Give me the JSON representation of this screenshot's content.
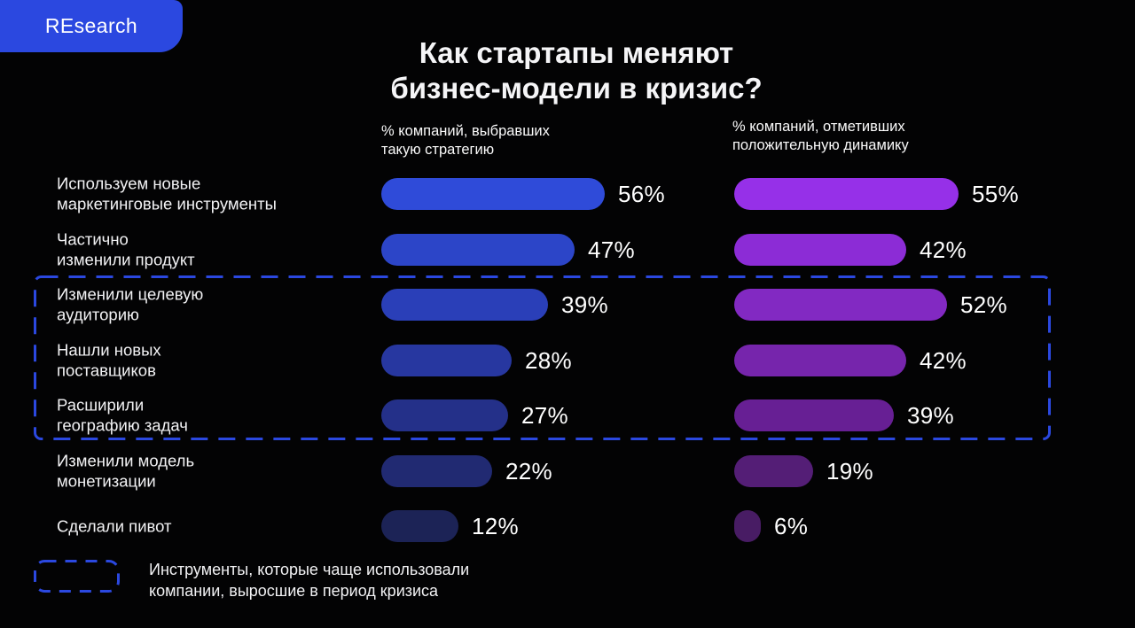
{
  "logo": {
    "text": "REsearch"
  },
  "title": "Как стартапы меняют\nбизнес-модели в кризис?",
  "columns": [
    {
      "header": "% компаний, выбравших\nтакую стратегию"
    },
    {
      "header": "% компаний, отметивших\nположительную динамику"
    }
  ],
  "legend": {
    "text": "Инструменты, которые чаще использовали\nкомпании, выросшие в период кризиса"
  },
  "colors": {
    "background": "#030304",
    "accent_blue": "#2B48E0",
    "logo_background": "#2B48E0",
    "text": "#F5F5F7"
  },
  "chart_data": {
    "type": "bar",
    "orientation": "horizontal",
    "title": "Как стартапы меняют бизнес-модели в кризис?",
    "unit": "%",
    "categories": [
      "Используем новые\nмаркетинговые инструменты",
      "Частично\nизменили продукт",
      "Изменили целевую\nаудиторию",
      "Нашли новых\nпоставщиков",
      "Расширили\nгеографию задач",
      "Изменили модель\nмонетизации",
      "Сделали пивот"
    ],
    "series": [
      {
        "name": "% компаний, выбравших такую стратегию",
        "values": [
          56,
          47,
          39,
          28,
          27,
          22,
          12
        ],
        "colors": [
          "#2F4BD9",
          "#2C45C8",
          "#2A3FB8",
          "#2737A0",
          "#243089",
          "#212A72",
          "#1C2356"
        ]
      },
      {
        "name": "% компаний, отметивших положительную динамику",
        "values": [
          55,
          42,
          52,
          42,
          39,
          19,
          6
        ],
        "colors": [
          "#9630E8",
          "#8C2CD6",
          "#8229C2",
          "#7625AC",
          "#671F94",
          "#541E76",
          "#481C64"
        ]
      }
    ],
    "highlighted_categories": [
      "Изменили целевую\nаудиторию",
      "Нашли новых\nпоставщиков",
      "Расширили\nгеографию задач"
    ],
    "highlight_note": "Инструменты, которые чаще использовали компании, выросшие в период кризиса",
    "xlim": [
      0,
      60
    ],
    "grid": false,
    "legend_position": "bottom-left"
  }
}
